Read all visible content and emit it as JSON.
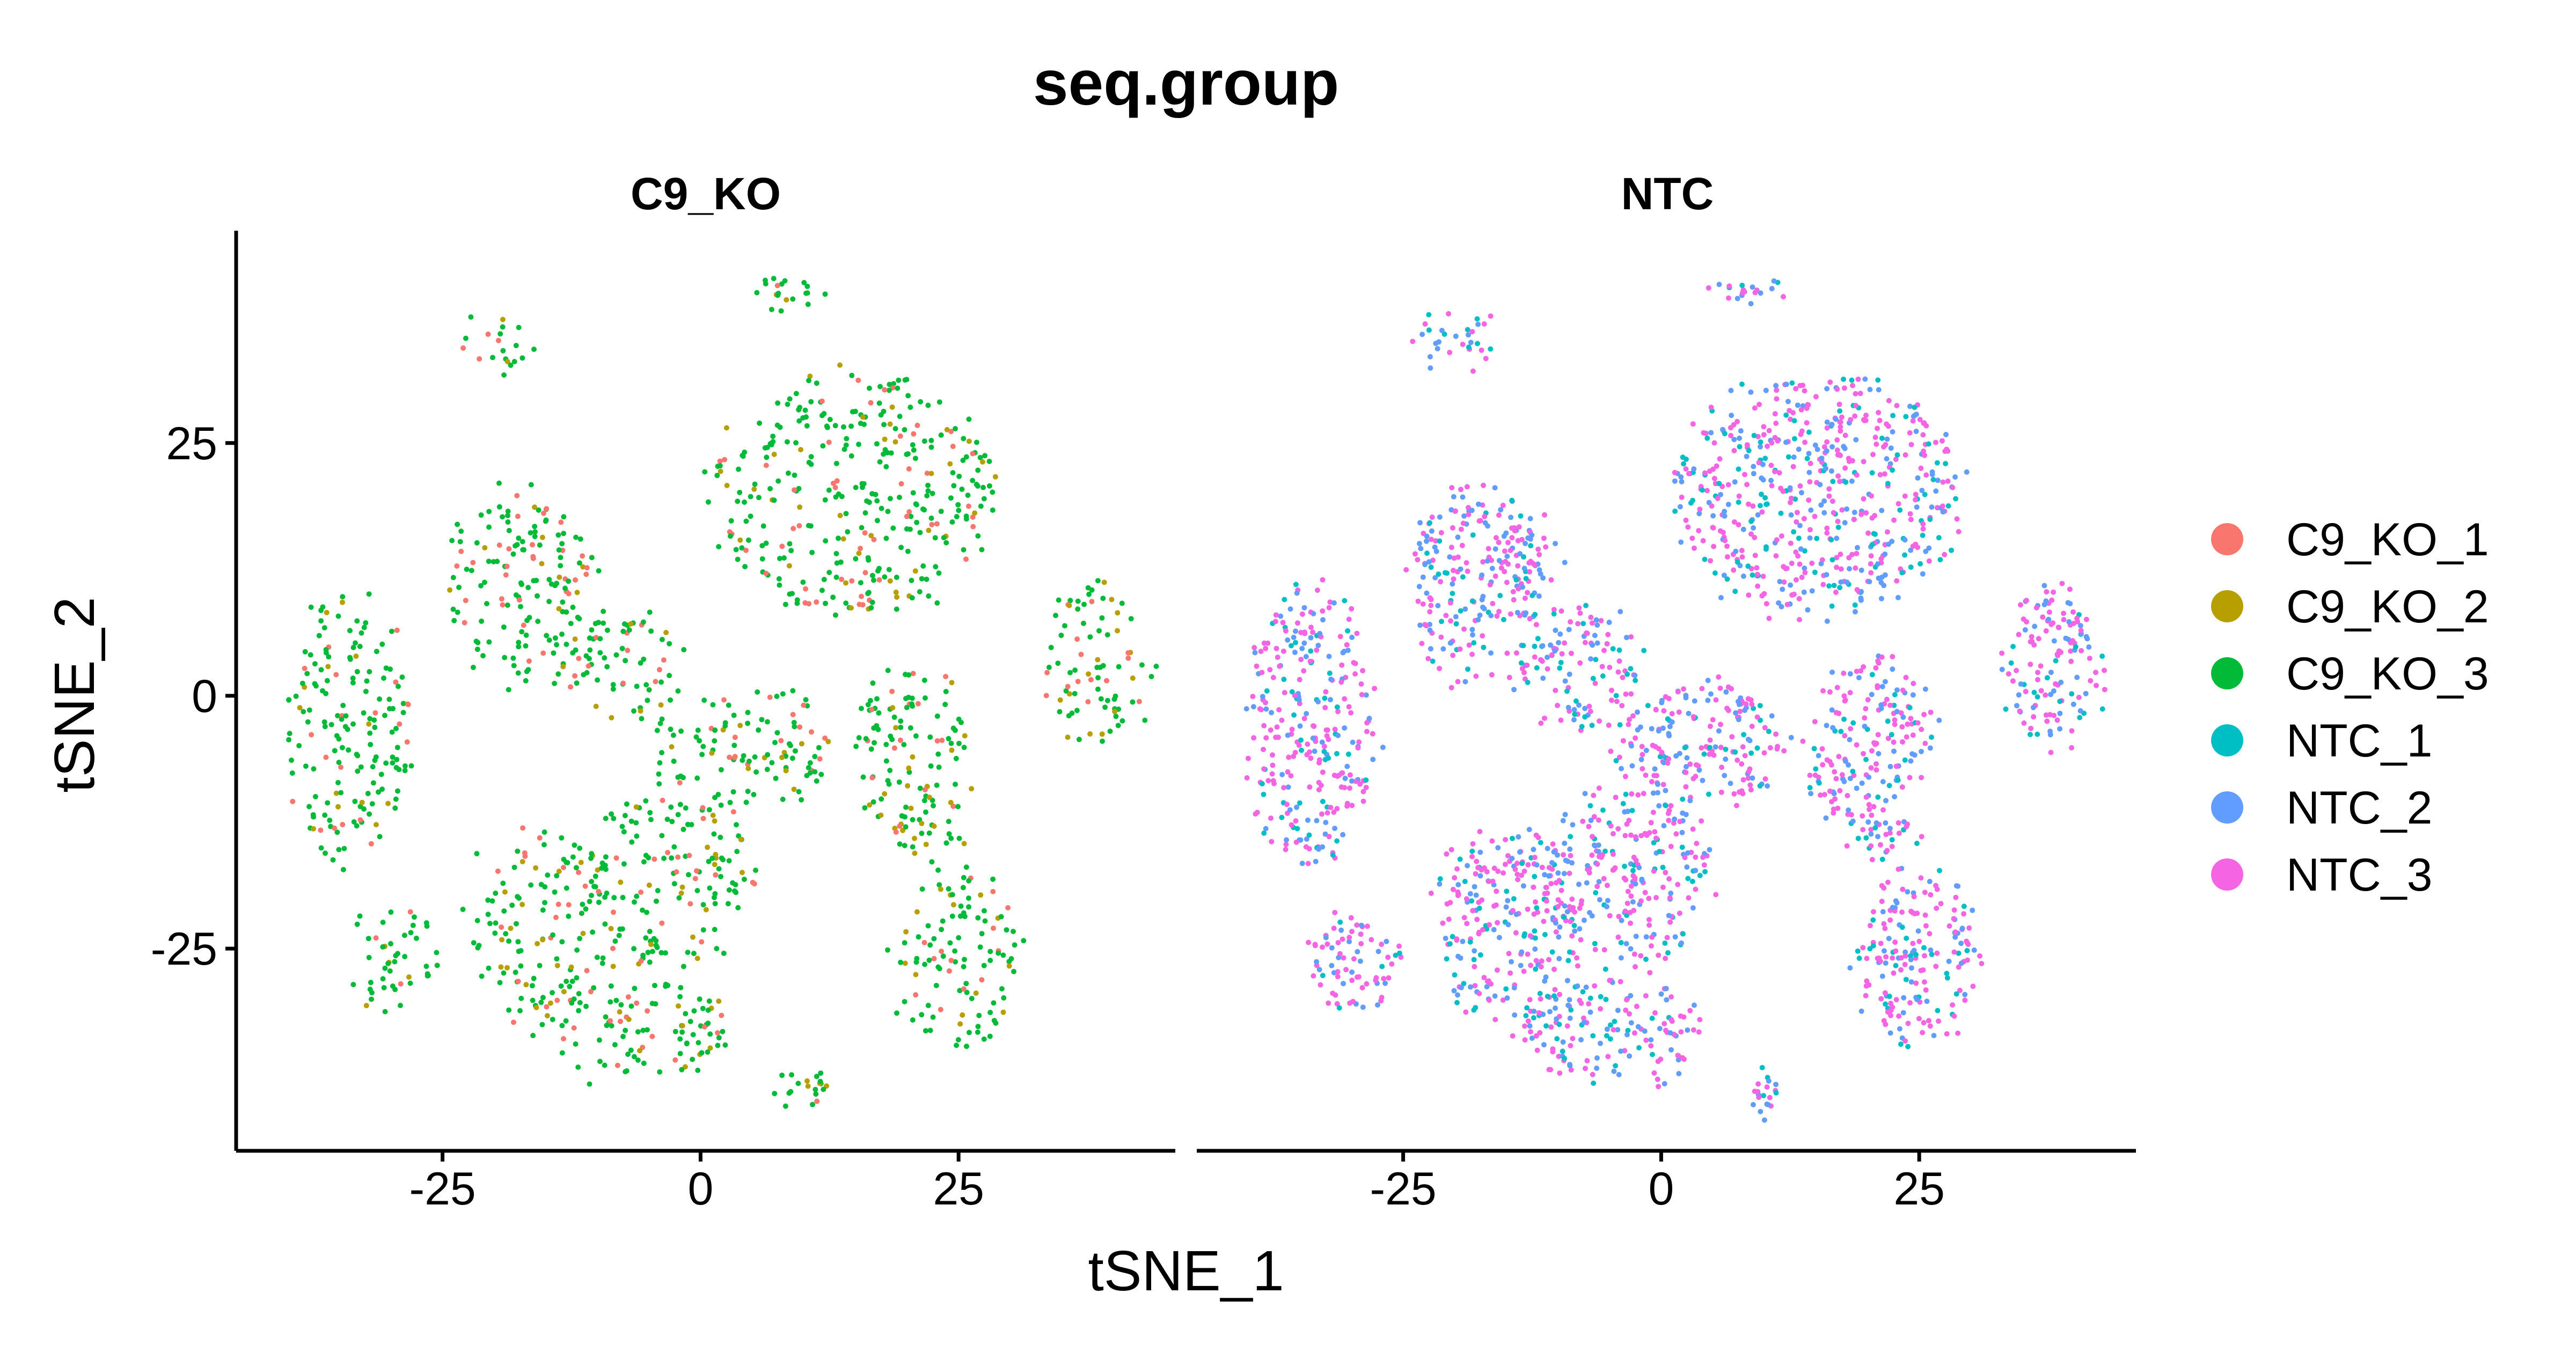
{
  "chart_data": {
    "type": "scatter",
    "title": "seq.group",
    "xlabel": "tSNE_1",
    "ylabel": "tSNE_2",
    "xlim": [
      -45,
      46
    ],
    "ylim": [
      -45,
      46
    ],
    "xticks": [
      -25,
      0,
      25
    ],
    "xtick_labels": [
      "-25",
      "0",
      "25"
    ],
    "yticks": [
      -25,
      0,
      25
    ],
    "ytick_labels": [
      "-25",
      "0",
      "25"
    ],
    "grid": false,
    "legend_position": "right",
    "facets": [
      {
        "name": "C9_KO",
        "series": [
          "C9_KO_1",
          "C9_KO_2",
          "C9_KO_3"
        ]
      },
      {
        "name": "NTC",
        "series": [
          "NTC_1",
          "NTC_2",
          "NTC_3"
        ]
      }
    ],
    "series": [
      {
        "name": "C9_KO_1",
        "color": "#F8766D",
        "facet": "C9_KO"
      },
      {
        "name": "C9_KO_2",
        "color": "#B79F00",
        "facet": "C9_KO"
      },
      {
        "name": "C9_KO_3",
        "color": "#00BA38",
        "facet": "C9_KO"
      },
      {
        "name": "NTC_1",
        "color": "#00BFC4",
        "facet": "NTC"
      },
      {
        "name": "NTC_2",
        "color": "#619CFF",
        "facet": "NTC"
      },
      {
        "name": "NTC_3",
        "color": "#F564E3",
        "facet": "NTC"
      }
    ],
    "clusters": [
      {
        "cx": -34,
        "cy": -3,
        "rx": 6,
        "ry": 14
      },
      {
        "cx": -30,
        "cy": -26,
        "rx": 4.5,
        "ry": 5
      },
      {
        "cx": -18,
        "cy": 11,
        "rx": 6,
        "ry": 10
      },
      {
        "cx": -20,
        "cy": 35,
        "rx": 3,
        "ry": 3
      },
      {
        "cx": -13,
        "cy": 14,
        "rx": 3,
        "ry": 4
      },
      {
        "cx": -15,
        "cy": -23,
        "rx": 7,
        "ry": 10
      },
      {
        "cx": -5,
        "cy": -33,
        "rx": 9,
        "ry": 5
      },
      {
        "cx": -3,
        "cy": -18,
        "rx": 8,
        "ry": 9
      },
      {
        "cx": 4,
        "cy": -5,
        "rx": 9,
        "ry": 6
      },
      {
        "cx": -8,
        "cy": 3,
        "rx": 6,
        "ry": 6
      },
      {
        "cx": 15,
        "cy": 20,
        "rx": 14,
        "ry": 12
      },
      {
        "cx": 20,
        "cy": -5,
        "rx": 6,
        "ry": 9
      },
      {
        "cx": 25,
        "cy": -26,
        "rx": 6,
        "ry": 9
      },
      {
        "cx": 38,
        "cy": 3,
        "rx": 5,
        "ry": 8
      },
      {
        "cx": 10,
        "cy": -39,
        "rx": 2,
        "ry": 2
      },
      {
        "cx": 9,
        "cy": 40,
        "rx": 3,
        "ry": 1
      },
      {
        "cx": 22,
        "cy": -14,
        "rx": 4,
        "ry": 2
      }
    ]
  }
}
